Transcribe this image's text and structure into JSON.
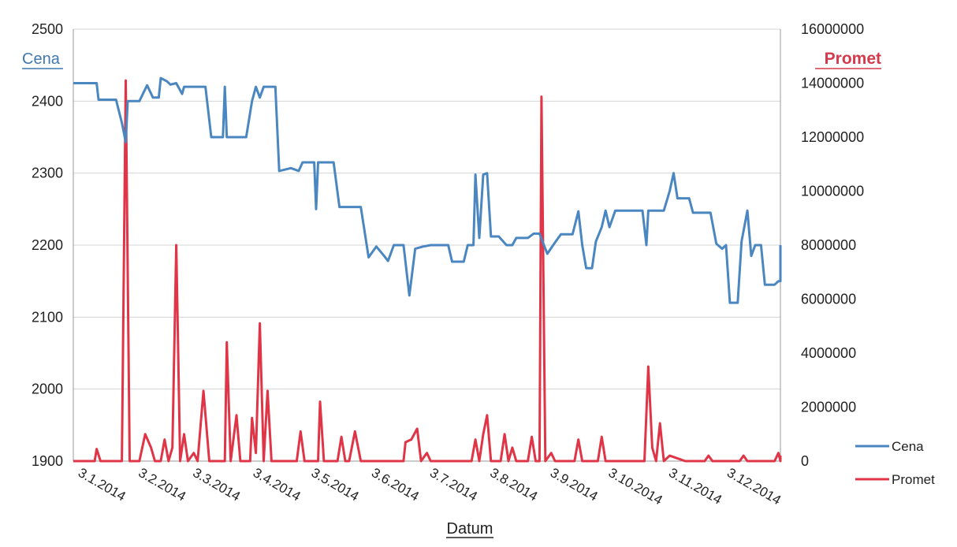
{
  "chart_data": {
    "type": "line",
    "title": "",
    "xlabel": "Datum",
    "ylabel": "Cena",
    "y2label": "Promet",
    "ylim": [
      1900,
      2500
    ],
    "y2lim": [
      0,
      16000000
    ],
    "yticks": [
      1900,
      2000,
      2100,
      2200,
      2300,
      2400,
      2500
    ],
    "y2ticks": [
      0,
      2000000,
      4000000,
      6000000,
      8000000,
      10000000,
      12000000,
      14000000,
      16000000
    ],
    "xticks": [
      "3.1.2014",
      "3.2.2014",
      "3.3.2014",
      "3.4.2014",
      "3.5.2014",
      "3.6.2014",
      "3.7.2014",
      "3.8.2014",
      "3.9.2014",
      "3.10.2014",
      "3.11.2014",
      "3.12.2014"
    ],
    "xlim": [
      "2014-01-01",
      "2014-12-31"
    ],
    "grid": true,
    "legend_position": "right",
    "colors": {
      "cena": "#4a86c0",
      "promet": "#e03447"
    },
    "series": [
      {
        "name": "Cena",
        "axis": "left",
        "points": [
          [
            "2014-01-01",
            2425
          ],
          [
            "2014-01-13",
            2425
          ],
          [
            "2014-01-14",
            2402
          ],
          [
            "2014-01-23",
            2402
          ],
          [
            "2014-01-26",
            2370
          ],
          [
            "2014-01-28",
            2343
          ],
          [
            "2014-01-29",
            2400
          ],
          [
            "2014-02-04",
            2400
          ],
          [
            "2014-02-08",
            2422
          ],
          [
            "2014-02-11",
            2405
          ],
          [
            "2014-02-14",
            2405
          ],
          [
            "2014-02-15",
            2432
          ],
          [
            "2014-02-18",
            2428
          ],
          [
            "2014-02-20",
            2423
          ],
          [
            "2014-02-23",
            2425
          ],
          [
            "2014-02-26",
            2410
          ],
          [
            "2014-02-27",
            2420
          ],
          [
            "2014-03-10",
            2420
          ],
          [
            "2014-03-13",
            2350
          ],
          [
            "2014-03-19",
            2350
          ],
          [
            "2014-03-20",
            2420
          ],
          [
            "2014-03-21",
            2350
          ],
          [
            "2014-03-31",
            2350
          ],
          [
            "2014-04-03",
            2400
          ],
          [
            "2014-04-05",
            2420
          ],
          [
            "2014-04-07",
            2405
          ],
          [
            "2014-04-09",
            2420
          ],
          [
            "2014-04-15",
            2420
          ],
          [
            "2014-04-17",
            2303
          ],
          [
            "2014-04-23",
            2307
          ],
          [
            "2014-04-27",
            2303
          ],
          [
            "2014-04-29",
            2315
          ],
          [
            "2014-05-05",
            2315
          ],
          [
            "2014-05-06",
            2250
          ],
          [
            "2014-05-07",
            2315
          ],
          [
            "2014-05-15",
            2315
          ],
          [
            "2014-05-18",
            2253
          ],
          [
            "2014-05-29",
            2253
          ],
          [
            "2014-06-02",
            2183
          ],
          [
            "2014-06-06",
            2198
          ],
          [
            "2014-06-10",
            2185
          ],
          [
            "2014-06-12",
            2178
          ],
          [
            "2014-06-15",
            2200
          ],
          [
            "2014-06-20",
            2200
          ],
          [
            "2014-06-23",
            2130
          ],
          [
            "2014-06-26",
            2195
          ],
          [
            "2014-06-30",
            2198
          ],
          [
            "2014-07-04",
            2200
          ],
          [
            "2014-07-13",
            2200
          ],
          [
            "2014-07-15",
            2177
          ],
          [
            "2014-07-21",
            2177
          ],
          [
            "2014-07-23",
            2200
          ],
          [
            "2014-07-26",
            2200
          ],
          [
            "2014-07-27",
            2298
          ],
          [
            "2014-07-29",
            2210
          ],
          [
            "2014-07-31",
            2298
          ],
          [
            "2014-08-02",
            2300
          ],
          [
            "2014-08-04",
            2212
          ],
          [
            "2014-08-08",
            2212
          ],
          [
            "2014-08-12",
            2200
          ],
          [
            "2014-08-15",
            2200
          ],
          [
            "2014-08-17",
            2210
          ],
          [
            "2014-08-23",
            2210
          ],
          [
            "2014-08-26",
            2216
          ],
          [
            "2014-08-29",
            2216
          ],
          [
            "2014-09-02",
            2188
          ],
          [
            "2014-09-05",
            2200
          ],
          [
            "2014-09-09",
            2215
          ],
          [
            "2014-09-15",
            2215
          ],
          [
            "2014-09-18",
            2247
          ],
          [
            "2014-09-20",
            2200
          ],
          [
            "2014-09-22",
            2168
          ],
          [
            "2014-09-25",
            2168
          ],
          [
            "2014-09-27",
            2205
          ],
          [
            "2014-09-30",
            2225
          ],
          [
            "2014-10-02",
            2248
          ],
          [
            "2014-10-04",
            2225
          ],
          [
            "2014-10-07",
            2248
          ],
          [
            "2014-10-21",
            2248
          ],
          [
            "2014-10-23",
            2200
          ],
          [
            "2014-10-24",
            2248
          ],
          [
            "2014-11-01",
            2248
          ],
          [
            "2014-11-04",
            2275
          ],
          [
            "2014-11-06",
            2300
          ],
          [
            "2014-11-08",
            2265
          ],
          [
            "2014-11-14",
            2265
          ],
          [
            "2014-11-16",
            2245
          ],
          [
            "2014-11-25",
            2245
          ],
          [
            "2014-11-28",
            2202
          ],
          [
            "2014-12-01",
            2195
          ],
          [
            "2014-12-03",
            2200
          ],
          [
            "2014-12-05",
            2120
          ],
          [
            "2014-12-09",
            2120
          ],
          [
            "2014-12-11",
            2205
          ],
          [
            "2014-12-14",
            2248
          ],
          [
            "2014-12-16",
            2185
          ],
          [
            "2014-12-18",
            2200
          ],
          [
            "2014-12-21",
            2200
          ],
          [
            "2014-12-23",
            2145
          ],
          [
            "2014-12-28",
            2145
          ],
          [
            "2014-12-30",
            2150
          ],
          [
            "2015-01-02",
            2150
          ],
          [
            "2015-01-05",
            2200
          ]
        ]
      },
      {
        "name": "Promet",
        "axis": "right",
        "points": [
          [
            "2014-01-01",
            0
          ],
          [
            "2014-01-12",
            0
          ],
          [
            "2014-01-13",
            450000
          ],
          [
            "2014-01-15",
            0
          ],
          [
            "2014-01-26",
            0
          ],
          [
            "2014-01-28",
            14100000
          ],
          [
            "2014-01-30",
            0
          ],
          [
            "2014-02-04",
            0
          ],
          [
            "2014-02-07",
            1000000
          ],
          [
            "2014-02-10",
            500000
          ],
          [
            "2014-02-12",
            0
          ],
          [
            "2014-02-15",
            0
          ],
          [
            "2014-02-17",
            800000
          ],
          [
            "2014-02-19",
            0
          ],
          [
            "2014-02-21",
            500000
          ],
          [
            "2014-02-23",
            8000000
          ],
          [
            "2014-02-25",
            0
          ],
          [
            "2014-02-27",
            1000000
          ],
          [
            "2014-03-01",
            0
          ],
          [
            "2014-03-04",
            300000
          ],
          [
            "2014-03-06",
            0
          ],
          [
            "2014-03-09",
            2600000
          ],
          [
            "2014-03-12",
            0
          ],
          [
            "2014-03-20",
            0
          ],
          [
            "2014-03-21",
            4400000
          ],
          [
            "2014-03-23",
            0
          ],
          [
            "2014-03-26",
            1700000
          ],
          [
            "2014-03-28",
            0
          ],
          [
            "2014-04-02",
            0
          ],
          [
            "2014-04-03",
            1600000
          ],
          [
            "2014-04-05",
            300000
          ],
          [
            "2014-04-07",
            5100000
          ],
          [
            "2014-04-09",
            0
          ],
          [
            "2014-04-11",
            2600000
          ],
          [
            "2014-04-13",
            0
          ],
          [
            "2014-04-26",
            0
          ],
          [
            "2014-04-28",
            1100000
          ],
          [
            "2014-04-30",
            0
          ],
          [
            "2014-05-07",
            0
          ],
          [
            "2014-05-08",
            2200000
          ],
          [
            "2014-05-10",
            0
          ],
          [
            "2014-05-17",
            0
          ],
          [
            "2014-05-19",
            900000
          ],
          [
            "2014-05-21",
            0
          ],
          [
            "2014-05-23",
            0
          ],
          [
            "2014-05-26",
            1100000
          ],
          [
            "2014-05-29",
            0
          ],
          [
            "2014-06-20",
            0
          ],
          [
            "2014-06-21",
            700000
          ],
          [
            "2014-06-24",
            800000
          ],
          [
            "2014-06-27",
            1200000
          ],
          [
            "2014-06-29",
            0
          ],
          [
            "2014-07-02",
            300000
          ],
          [
            "2014-07-04",
            0
          ],
          [
            "2014-07-25",
            0
          ],
          [
            "2014-07-27",
            800000
          ],
          [
            "2014-07-29",
            0
          ],
          [
            "2014-07-31",
            1000000
          ],
          [
            "2014-08-02",
            1700000
          ],
          [
            "2014-08-04",
            0
          ],
          [
            "2014-08-09",
            0
          ],
          [
            "2014-08-11",
            1000000
          ],
          [
            "2014-08-13",
            0
          ],
          [
            "2014-08-15",
            500000
          ],
          [
            "2014-08-17",
            0
          ],
          [
            "2014-08-23",
            0
          ],
          [
            "2014-08-25",
            900000
          ],
          [
            "2014-08-27",
            0
          ],
          [
            "2014-08-29",
            0
          ],
          [
            "2014-08-30",
            13500000
          ],
          [
            "2014-09-01",
            0
          ],
          [
            "2014-09-04",
            300000
          ],
          [
            "2014-09-06",
            0
          ],
          [
            "2014-09-16",
            0
          ],
          [
            "2014-09-18",
            800000
          ],
          [
            "2014-09-20",
            0
          ],
          [
            "2014-09-28",
            0
          ],
          [
            "2014-09-30",
            900000
          ],
          [
            "2014-10-02",
            0
          ],
          [
            "2014-10-22",
            0
          ],
          [
            "2014-10-24",
            3500000
          ],
          [
            "2014-10-26",
            500000
          ],
          [
            "2014-10-28",
            0
          ],
          [
            "2014-10-30",
            1400000
          ],
          [
            "2014-11-01",
            0
          ],
          [
            "2014-11-04",
            200000
          ],
          [
            "2014-11-08",
            100000
          ],
          [
            "2014-11-12",
            0
          ],
          [
            "2014-11-22",
            0
          ],
          [
            "2014-11-24",
            200000
          ],
          [
            "2014-11-26",
            0
          ],
          [
            "2014-12-10",
            0
          ],
          [
            "2014-12-12",
            200000
          ],
          [
            "2014-12-14",
            0
          ],
          [
            "2014-12-28",
            0
          ],
          [
            "2014-12-30",
            300000
          ],
          [
            "2015-01-02",
            0
          ],
          [
            "2015-01-05",
            200000
          ]
        ]
      }
    ]
  }
}
